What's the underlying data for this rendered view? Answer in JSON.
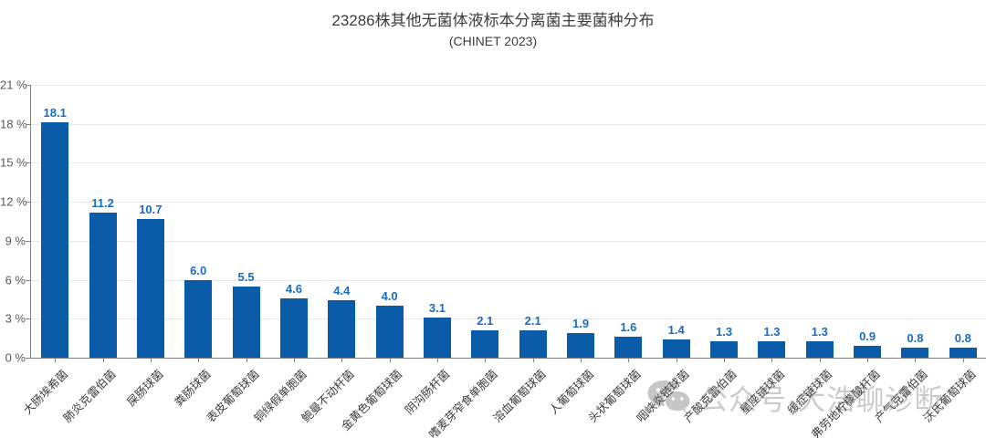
{
  "chart_data": {
    "type": "bar",
    "title": "23286株其他无菌体液标本分离菌主要菌种分布",
    "subtitle": "(CHINET 2023)",
    "categories": [
      "大肠埃希菌",
      "肺炎克雷伯菌",
      "屎肠球菌",
      "粪肠球菌",
      "表皮葡萄球菌",
      "铜绿假单胞菌",
      "鲍曼不动杆菌",
      "金黄色葡萄球菌",
      "阴沟肠杆菌",
      "嗜麦芽窄食单胞菌",
      "溶血葡萄球菌",
      "人葡萄球菌",
      "头状葡萄球菌",
      "咽峡炎链球菌",
      "产酸克雷伯菌",
      "星座链球菌",
      "缓症链球菌",
      "弗劳地柠檬酸杆菌",
      "产气克雷伯菌",
      "沃氏葡萄球菌"
    ],
    "values": [
      18.1,
      11.2,
      10.7,
      6.0,
      5.5,
      4.6,
      4.4,
      4.0,
      3.1,
      2.1,
      2.1,
      1.9,
      1.6,
      1.4,
      1.3,
      1.3,
      1.3,
      0.9,
      0.8,
      0.8
    ],
    "xlabel": "",
    "ylabel": "",
    "ylim": [
      0,
      21
    ],
    "yticks": [
      0,
      3,
      6,
      9,
      12,
      15,
      18,
      21
    ],
    "ytick_suffix": " %",
    "grid": true,
    "legend": false
  },
  "watermark": {
    "text": "公众号·大浩聊诊断",
    "icon": "wechat-icon",
    "color": "#cbcbcb"
  },
  "colors": {
    "bar": "#0a5ca8",
    "value_label": "#1a6cc0",
    "axis": "#7f7f7f",
    "gridline": "#e9e9e9",
    "ytick_label": "#595959",
    "category_label": "#3c3c3c",
    "title": "#3c3c3c",
    "watermark": "#c6c6c6"
  }
}
